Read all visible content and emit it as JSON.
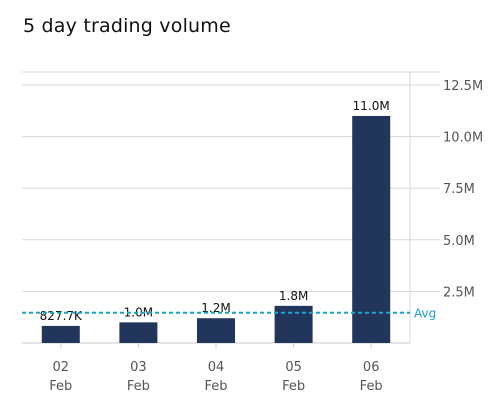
{
  "title": "5 day trading volume",
  "chart_data": {
    "type": "bar",
    "categories": [
      {
        "day": "02",
        "month": "Feb"
      },
      {
        "day": "03",
        "month": "Feb"
      },
      {
        "day": "04",
        "month": "Feb"
      },
      {
        "day": "05",
        "month": "Feb"
      },
      {
        "day": "06",
        "month": "Feb"
      }
    ],
    "values": [
      827700,
      1000000,
      1200000,
      1800000,
      11000000
    ],
    "data_labels": [
      "827.7K",
      "1.0M",
      "1.2M",
      "1.8M",
      "11.0M"
    ],
    "ylim": [
      0,
      12500000
    ],
    "yticks": [
      {
        "value": 2500000,
        "label": "2.5M"
      },
      {
        "value": 5000000,
        "label": "5.0M"
      },
      {
        "value": 7500000,
        "label": "7.5M"
      },
      {
        "value": 10000000,
        "label": "10.0M"
      },
      {
        "value": 12500000,
        "label": "12.5M"
      }
    ],
    "average": {
      "value": 1370000,
      "label": "Avg"
    },
    "y_axis_position": "right",
    "grid": true,
    "colors": {
      "bar": "#22355a",
      "avg": "#1aa3cf",
      "grid": "#d6d9dc"
    }
  }
}
